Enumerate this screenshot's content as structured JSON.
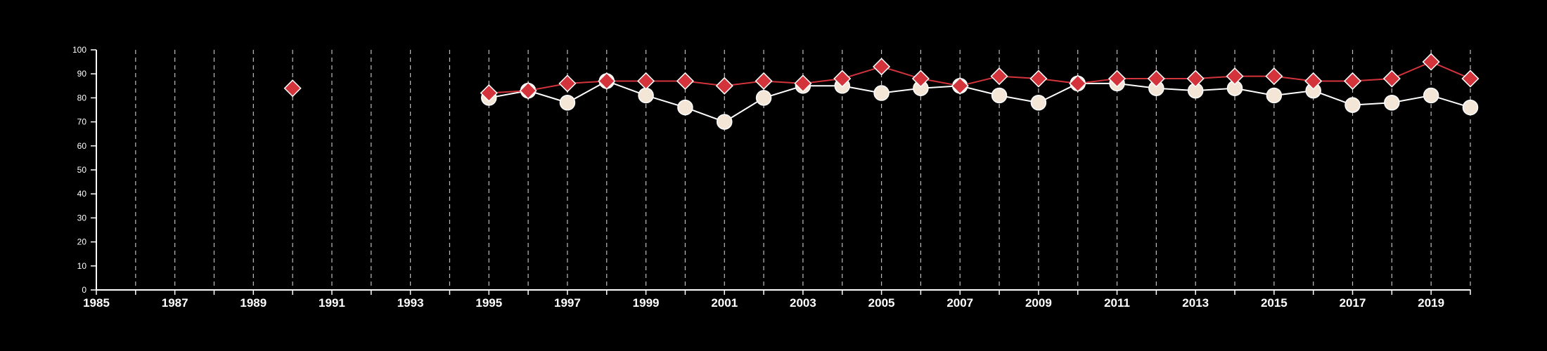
{
  "chart_data": {
    "type": "line",
    "title": "",
    "xlabel": "",
    "ylabel": "",
    "xlim": [
      1985,
      2020
    ],
    "ylim": [
      0,
      100
    ],
    "x_ticks": [
      "1985",
      "1987",
      "1989",
      "1991",
      "1993",
      "1995",
      "1997",
      "1999",
      "2001",
      "2003",
      "2005",
      "2007",
      "2009",
      "2011",
      "2013",
      "2015",
      "2017",
      "2019"
    ],
    "y_ticks": [
      "0",
      "10",
      "20",
      "30",
      "40",
      "50",
      "60",
      "70",
      "80",
      "90",
      "100"
    ],
    "grid": "vertical dashed lines at every year",
    "legend": "none",
    "series": [
      {
        "marker": "circle",
        "color": "#f3e6d6",
        "points": [
          [
            1995,
            80
          ],
          [
            1996,
            83
          ],
          [
            1997,
            78
          ],
          [
            1998,
            87
          ],
          [
            1999,
            81
          ],
          [
            2000,
            76
          ],
          [
            2001,
            70
          ],
          [
            2002,
            80
          ],
          [
            2003,
            85
          ],
          [
            2004,
            85
          ],
          [
            2005,
            82
          ],
          [
            2006,
            84
          ],
          [
            2007,
            85
          ],
          [
            2008,
            81
          ],
          [
            2009,
            78
          ],
          [
            2010,
            86
          ],
          [
            2011,
            86
          ],
          [
            2012,
            84
          ],
          [
            2013,
            83
          ],
          [
            2014,
            84
          ],
          [
            2015,
            81
          ],
          [
            2016,
            83
          ],
          [
            2017,
            77
          ],
          [
            2018,
            78
          ],
          [
            2019,
            81
          ],
          [
            2020,
            76
          ]
        ]
      },
      {
        "marker": "diamond",
        "color": "#d3343b",
        "points": [
          [
            1990,
            84
          ],
          [
            1995,
            82
          ],
          [
            1996,
            83
          ],
          [
            1997,
            86
          ],
          [
            1998,
            87
          ],
          [
            1999,
            87
          ],
          [
            2000,
            87
          ],
          [
            2001,
            85
          ],
          [
            2002,
            87
          ],
          [
            2003,
            86
          ],
          [
            2004,
            88
          ],
          [
            2005,
            93
          ],
          [
            2006,
            88
          ],
          [
            2007,
            85
          ],
          [
            2008,
            89
          ],
          [
            2009,
            88
          ],
          [
            2010,
            86
          ],
          [
            2011,
            88
          ],
          [
            2012,
            88
          ],
          [
            2013,
            88
          ],
          [
            2014,
            89
          ],
          [
            2015,
            89
          ],
          [
            2016,
            87
          ],
          [
            2017,
            87
          ],
          [
            2018,
            88
          ],
          [
            2019,
            95
          ],
          [
            2020,
            88
          ]
        ]
      }
    ]
  }
}
